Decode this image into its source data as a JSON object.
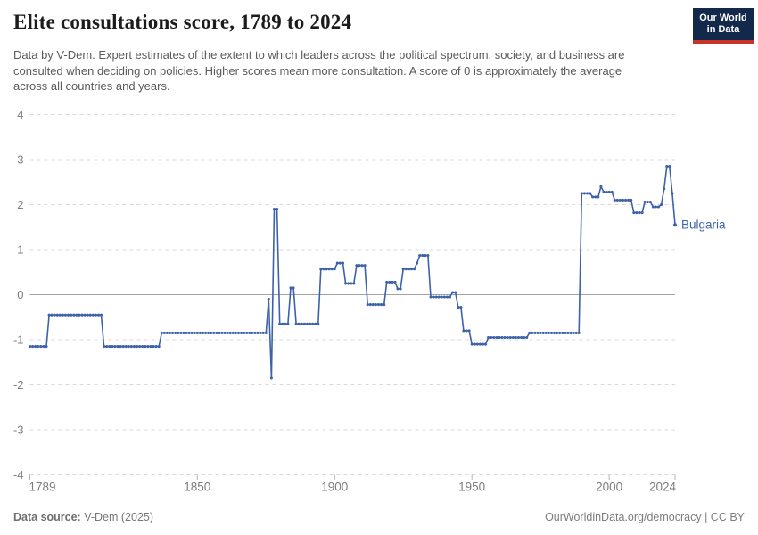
{
  "header": {
    "title": "Elite consultations score, 1789 to 2024",
    "subtitle": "Data by V-Dem. Expert estimates of the extent to which leaders across the political spectrum, society, and business are consulted when deciding on policies. Higher scores mean more consultation. A score of 0 is approximately the average across all countries and years.",
    "logo": {
      "line1": "Our World",
      "line2": "in Data",
      "bg_color": "#13294B",
      "stripe_color": "#C9342A"
    }
  },
  "chart_data": {
    "type": "line",
    "title": "Elite consultations score, 1789 to 2024",
    "entity_label": "Bulgaria",
    "line_color": "#3D62A9",
    "grid": "horizontal dashed gridlines, solid zero line, on",
    "legend_position": "end-of-line label",
    "x_range": [
      1789,
      2024
    ],
    "y_range": [
      -4,
      4
    ],
    "x_ticks": [
      1789,
      1850,
      1900,
      1950,
      2000,
      2024
    ],
    "y_ticks": [
      4,
      3,
      2,
      1,
      0,
      -1,
      -2,
      -3,
      -4
    ],
    "series": [
      {
        "name": "Bulgaria",
        "segments": [
          [
            1789,
            1795,
            -1.15
          ],
          [
            1796,
            1815,
            -0.45
          ],
          [
            1816,
            1836,
            -1.15
          ],
          [
            1837,
            1875,
            -0.85
          ],
          [
            1876,
            1876,
            -0.1
          ],
          [
            1877,
            1877,
            -1.85
          ],
          [
            1878,
            1879,
            1.9
          ],
          [
            1880,
            1883,
            -0.65
          ],
          [
            1884,
            1885,
            0.15
          ],
          [
            1886,
            1894,
            -0.65
          ],
          [
            1895,
            1900,
            0.57
          ],
          [
            1901,
            1903,
            0.7
          ],
          [
            1904,
            1907,
            0.25
          ],
          [
            1908,
            1911,
            0.65
          ],
          [
            1912,
            1918,
            -0.22
          ],
          [
            1919,
            1922,
            0.28
          ],
          [
            1923,
            1924,
            0.13
          ],
          [
            1925,
            1929,
            0.57
          ],
          [
            1930,
            1930,
            0.7
          ],
          [
            1931,
            1934,
            0.87
          ],
          [
            1935,
            1942,
            -0.05
          ],
          [
            1943,
            1944,
            0.05
          ],
          [
            1945,
            1946,
            -0.28
          ],
          [
            1947,
            1949,
            -0.8
          ],
          [
            1950,
            1955,
            -1.1
          ],
          [
            1956,
            1970,
            -0.95
          ],
          [
            1971,
            1989,
            -0.85
          ],
          [
            1990,
            1993,
            2.25
          ],
          [
            1994,
            1996,
            2.17
          ],
          [
            1997,
            1997,
            2.4
          ],
          [
            1998,
            2001,
            2.28
          ],
          [
            2002,
            2008,
            2.1
          ],
          [
            2009,
            2012,
            1.82
          ],
          [
            2013,
            2015,
            2.06
          ],
          [
            2016,
            2018,
            1.95
          ],
          [
            2019,
            2019,
            2.0
          ],
          [
            2020,
            2020,
            2.35
          ],
          [
            2021,
            2022,
            2.85
          ],
          [
            2023,
            2023,
            2.25
          ],
          [
            2024,
            2024,
            1.55
          ]
        ]
      }
    ]
  },
  "footer": {
    "source_label": "Data source:",
    "source_value": "V-Dem (2025)",
    "url_text": "OurWorldinData.org/democracy",
    "separator": " | ",
    "license_text": "CC BY"
  }
}
